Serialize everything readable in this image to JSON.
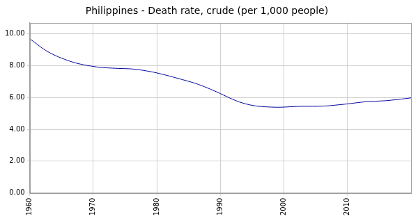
{
  "chart_data": {
    "type": "line",
    "title": "Philippines - Death rate, crude (per 1,000 people)",
    "x": [
      1960,
      1961,
      1962,
      1963,
      1964,
      1965,
      1966,
      1967,
      1968,
      1969,
      1970,
      1971,
      1972,
      1973,
      1974,
      1975,
      1976,
      1977,
      1978,
      1979,
      1980,
      1981,
      1982,
      1983,
      1984,
      1985,
      1986,
      1987,
      1988,
      1989,
      1990,
      1991,
      1992,
      1993,
      1994,
      1995,
      1996,
      1997,
      1998,
      1999,
      2000,
      2001,
      2002,
      2003,
      2004,
      2005,
      2006,
      2007,
      2008,
      2009,
      2010,
      2011,
      2012,
      2013,
      2014,
      2015,
      2016,
      2017,
      2018,
      2019,
      2020
    ],
    "values": [
      9.7,
      9.4,
      9.1,
      8.85,
      8.65,
      8.48,
      8.33,
      8.2,
      8.1,
      8.02,
      7.96,
      7.9,
      7.87,
      7.85,
      7.83,
      7.82,
      7.8,
      7.76,
      7.7,
      7.63,
      7.55,
      7.45,
      7.35,
      7.24,
      7.13,
      7.02,
      6.9,
      6.76,
      6.6,
      6.43,
      6.25,
      6.06,
      5.88,
      5.72,
      5.6,
      5.51,
      5.45,
      5.42,
      5.4,
      5.39,
      5.4,
      5.42,
      5.44,
      5.45,
      5.45,
      5.45,
      5.46,
      5.48,
      5.52,
      5.56,
      5.6,
      5.65,
      5.7,
      5.74,
      5.76,
      5.78,
      5.8,
      5.84,
      5.88,
      5.93,
      5.98
    ],
    "color": "#0000a0",
    "xlim": [
      1960,
      2020
    ],
    "xticks": [
      1960,
      1970,
      1980,
      1990,
      2000,
      2010
    ],
    "ylim": [
      0,
      10.7
    ],
    "yticks": [
      {
        "value": 0,
        "label": "0.00"
      },
      {
        "value": 2,
        "label": "2.00"
      },
      {
        "value": 4,
        "label": "4.00"
      },
      {
        "value": 6,
        "label": "6.00"
      },
      {
        "value": 8,
        "label": "8.00"
      },
      {
        "value": 10,
        "label": "10.00"
      }
    ],
    "grid": true
  }
}
